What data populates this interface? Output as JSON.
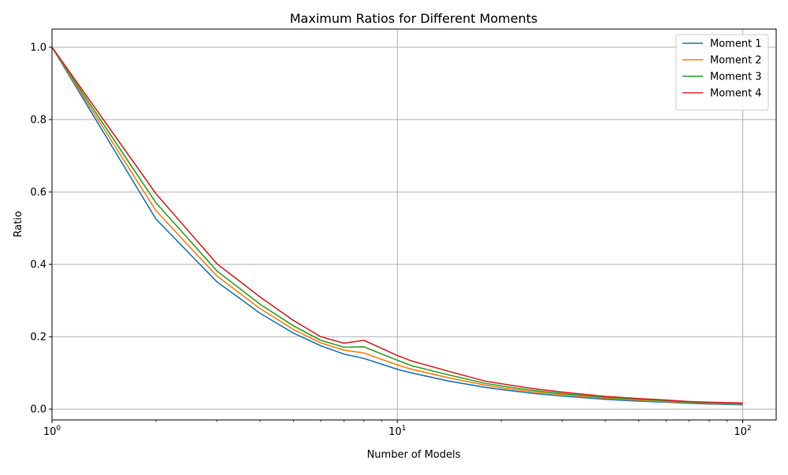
{
  "chart_data": {
    "type": "line",
    "title": "Maximum Ratios for Different Moments",
    "xlabel": "Number of Models",
    "ylabel": "Ratio",
    "x_scale": "log",
    "xlim": [
      1,
      125
    ],
    "ylim": [
      -0.03,
      1.05
    ],
    "x_ticks": [
      {
        "value": 1,
        "base": "10",
        "exp": "0"
      },
      {
        "value": 10,
        "base": "10",
        "exp": "1"
      },
      {
        "value": 100,
        "base": "10",
        "exp": "2"
      }
    ],
    "y_ticks": [
      0.0,
      0.2,
      0.4,
      0.6,
      0.8,
      1.0
    ],
    "y_tick_labels": [
      "0.0",
      "0.2",
      "0.4",
      "0.6",
      "0.8",
      "1.0"
    ],
    "grid": true,
    "legend_position": "top-right",
    "x": [
      1,
      2,
      3,
      4,
      5,
      6,
      7,
      8,
      10,
      11,
      14,
      18,
      20,
      25,
      30,
      40,
      50,
      60,
      70,
      80,
      90,
      100
    ],
    "series": [
      {
        "name": "Moment 1",
        "color": "#1f77b4",
        "values": [
          1.0,
          0.525,
          0.352,
          0.265,
          0.21,
          0.175,
          0.152,
          0.14,
          0.11,
          0.1,
          0.078,
          0.06,
          0.054,
          0.043,
          0.036,
          0.027,
          0.022,
          0.019,
          0.016,
          0.014,
          0.013,
          0.012
        ]
      },
      {
        "name": "Moment 2",
        "color": "#ff7f0e",
        "values": [
          1.0,
          0.548,
          0.368,
          0.278,
          0.22,
          0.183,
          0.163,
          0.155,
          0.122,
          0.11,
          0.087,
          0.066,
          0.059,
          0.047,
          0.04,
          0.03,
          0.025,
          0.021,
          0.018,
          0.016,
          0.015,
          0.014
        ]
      },
      {
        "name": "Moment 3",
        "color": "#2ca02c",
        "values": [
          1.0,
          0.57,
          0.382,
          0.29,
          0.23,
          0.19,
          0.171,
          0.172,
          0.135,
          0.12,
          0.095,
          0.071,
          0.064,
          0.051,
          0.043,
          0.032,
          0.027,
          0.023,
          0.019,
          0.017,
          0.016,
          0.015
        ]
      },
      {
        "name": "Moment 4",
        "color": "#d62728",
        "values": [
          1.0,
          0.595,
          0.402,
          0.31,
          0.245,
          0.2,
          0.182,
          0.19,
          0.148,
          0.133,
          0.105,
          0.077,
          0.07,
          0.056,
          0.047,
          0.035,
          0.029,
          0.025,
          0.021,
          0.019,
          0.018,
          0.017
        ]
      }
    ]
  }
}
